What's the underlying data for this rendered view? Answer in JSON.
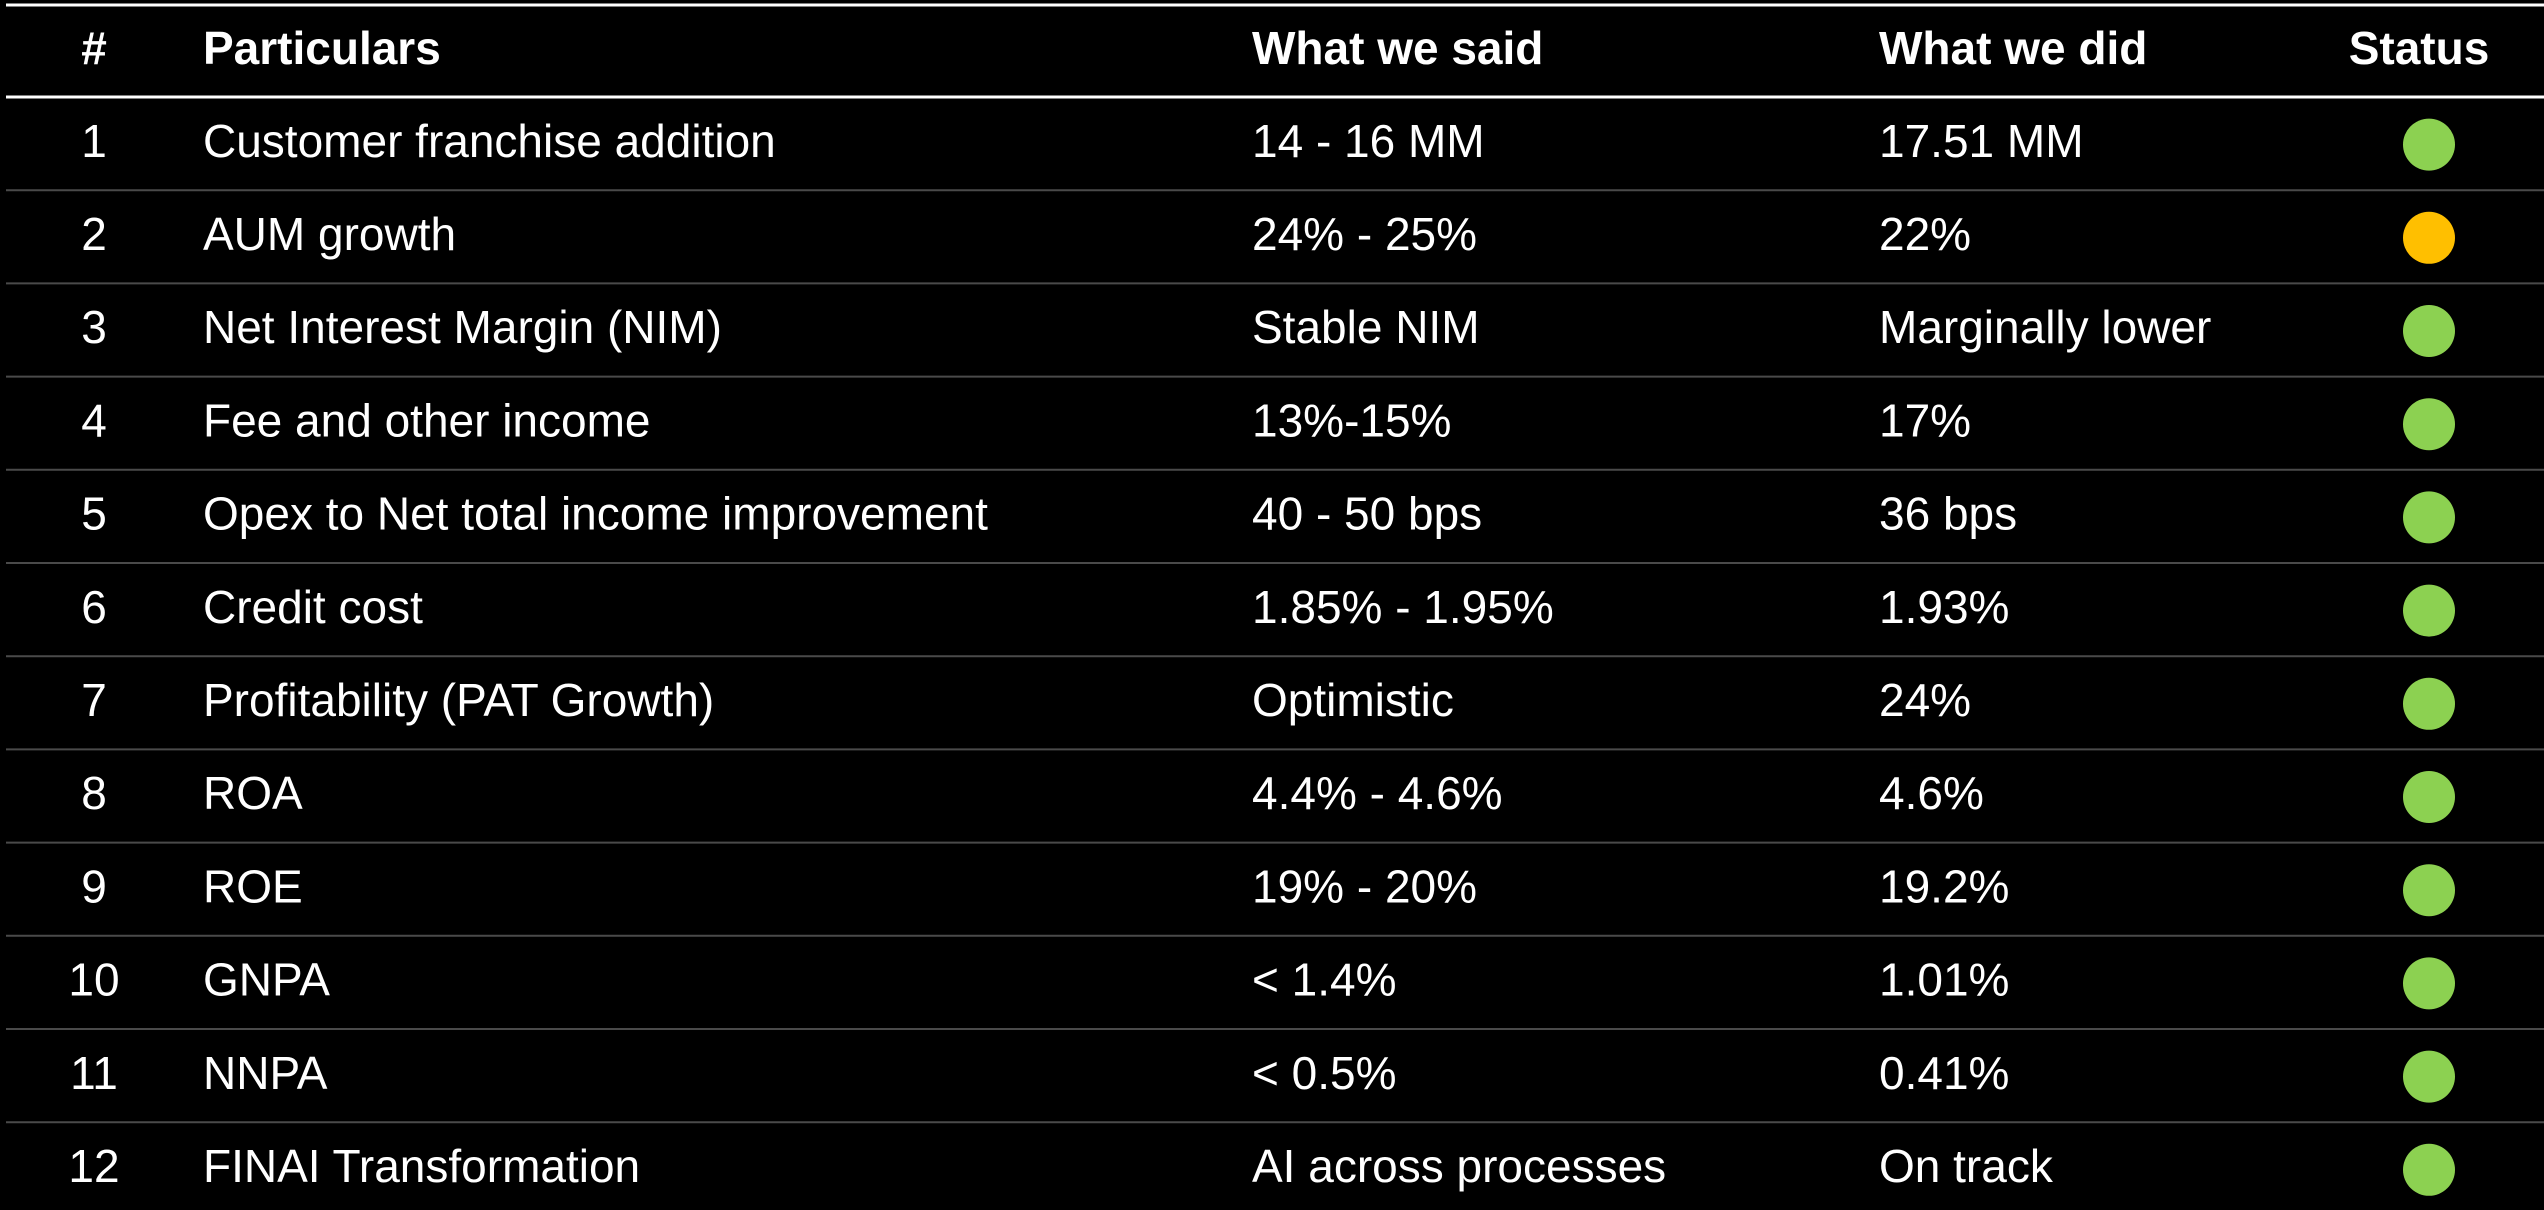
{
  "table": {
    "header": [
      "#",
      "Particulars",
      "What we said",
      "What we did",
      "Status"
    ],
    "rows": [
      [
        "1",
        "Customer franchise addition",
        "14 - 16 MM",
        "17.51 MM"
      ],
      [
        "2",
        "AUM growth",
        "24% - 25%",
        "22%"
      ],
      [
        "3",
        "Net Interest Margin (NIM)",
        "Stable NIM",
        "Marginally lower"
      ],
      [
        "4",
        "Fee and other income",
        "13%-15%",
        "17%"
      ],
      [
        "5",
        "Opex to Net total income improvement",
        "40 - 50 bps",
        "36 bps"
      ],
      [
        "6",
        "Credit cost",
        "1.85% - 1.95%",
        "1.93%"
      ],
      [
        "7",
        "Profitability (PAT Growth)",
        "Optimistic",
        "24%"
      ],
      [
        "8",
        "ROA",
        "4.4% - 4.6%",
        "4.6%"
      ],
      [
        "9",
        "ROE",
        "19% - 20%",
        "19.2%"
      ],
      [
        "10",
        "GNPA",
        "< 1.4%",
        "1.01%"
      ],
      [
        "11",
        "NNPA",
        "< 0.5%",
        "0.41%"
      ],
      [
        "12",
        "FINAI Transformation",
        "AI across processes",
        "On track"
      ]
    ],
    "status": [
      "#8cd151",
      "#ffbf00",
      "#8cd151",
      "#8cd151",
      "#8cd151",
      "#8cd151",
      "#8cd151",
      "#8cd151",
      "#8cd151",
      "#8cd151",
      "#8cd151",
      "#8cd151"
    ]
  }
}
